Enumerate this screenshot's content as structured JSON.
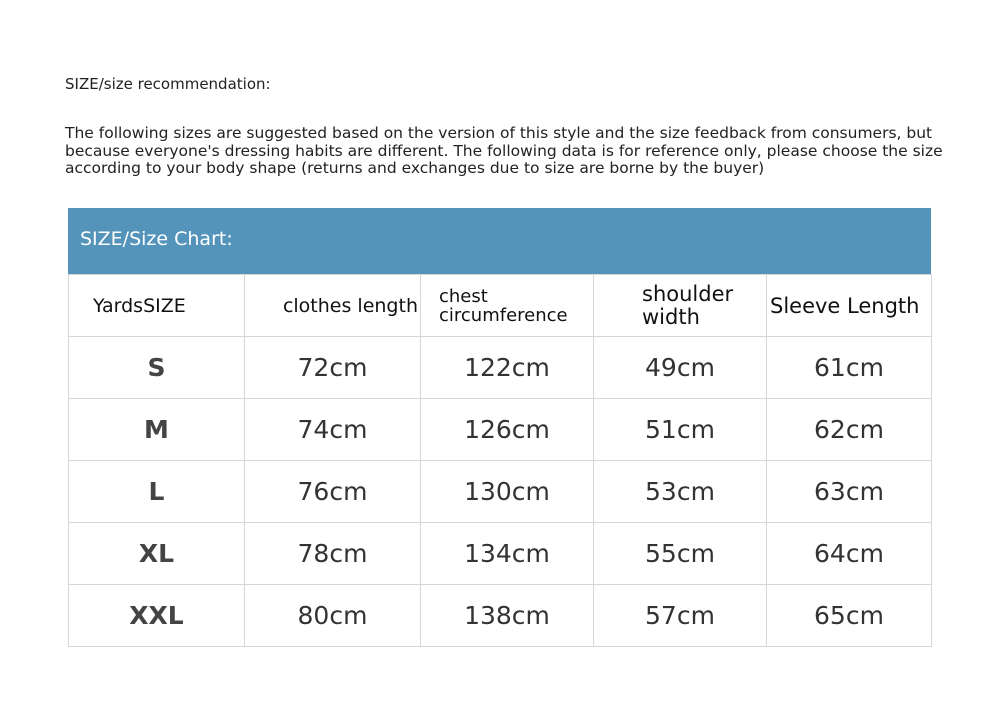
{
  "title": "SIZE/size recommendation:",
  "intro": "The following sizes are suggested based on the version of this style and the size feedback from consumers, but because everyone's dressing habits are different. The following data is for reference only, please choose the size according to your body shape (returns and exchanges due to size are borne by the buyer)",
  "chart_title": "SIZE/Size Chart:",
  "header_color": "#5494bb",
  "columns": [
    "YardsSIZE",
    "clothes length",
    "chest circumference",
    "shoulder width",
    "Sleeve Length"
  ],
  "rows": [
    [
      "S",
      "72cm",
      "122cm",
      "49cm",
      "61cm"
    ],
    [
      "M",
      "74cm",
      "126cm",
      "51cm",
      "62cm"
    ],
    [
      "L",
      "76cm",
      "130cm",
      "53cm",
      "63cm"
    ],
    [
      "XL",
      "78cm",
      "134cm",
      "55cm",
      "64cm"
    ],
    [
      "XXL",
      "80cm",
      "138cm",
      "57cm",
      "65cm"
    ]
  ]
}
